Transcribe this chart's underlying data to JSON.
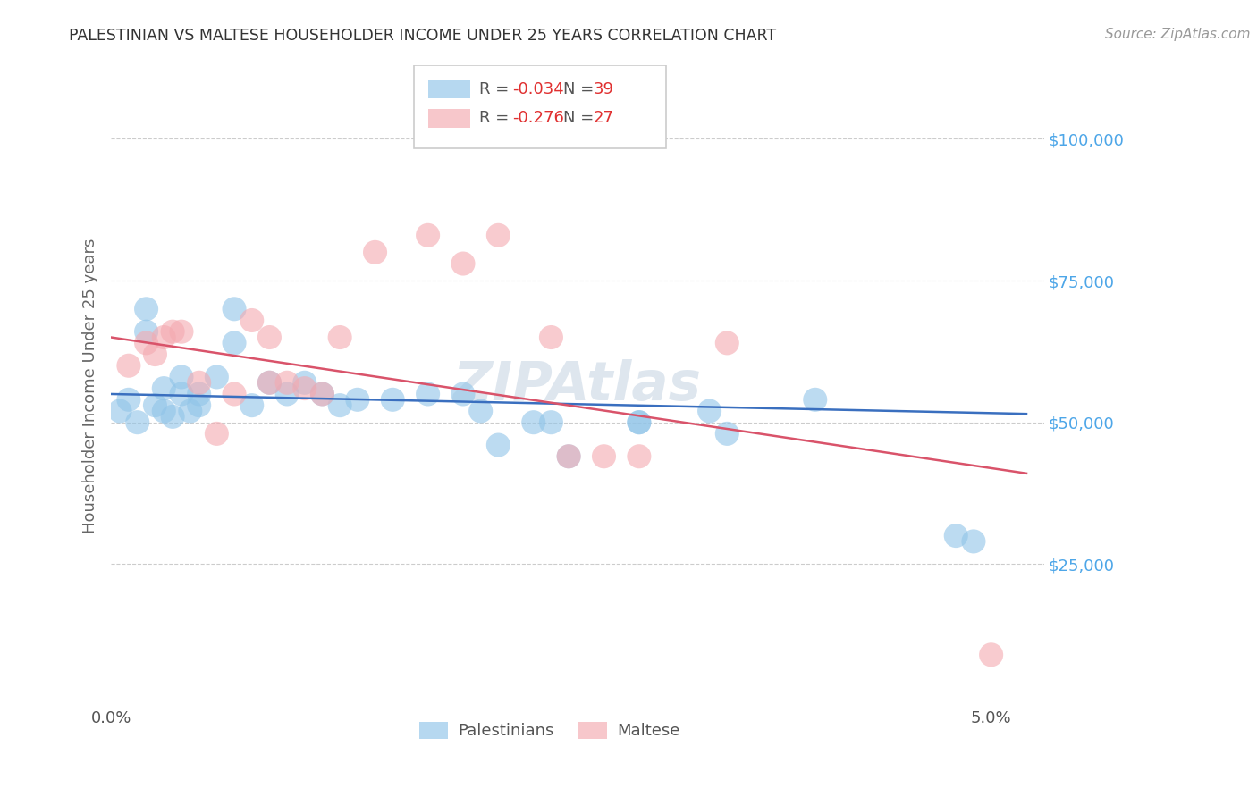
{
  "title": "PALESTINIAN VS MALTESE HOUSEHOLDER INCOME UNDER 25 YEARS CORRELATION CHART",
  "source": "Source: ZipAtlas.com",
  "ylabel": "Householder Income Under 25 years",
  "blue_color": "#90c4e8",
  "pink_color": "#f4a9b0",
  "blue_line_color": "#3a6fbf",
  "pink_line_color": "#d9536a",
  "tick_label_color": "#4da6e8",
  "watermark_color": "#d0dce8",
  "palestinians_x": [
    0.0005,
    0.001,
    0.0015,
    0.002,
    0.002,
    0.0025,
    0.003,
    0.003,
    0.0035,
    0.004,
    0.004,
    0.0045,
    0.005,
    0.005,
    0.006,
    0.007,
    0.007,
    0.008,
    0.009,
    0.01,
    0.011,
    0.012,
    0.013,
    0.014,
    0.016,
    0.018,
    0.02,
    0.021,
    0.022,
    0.024,
    0.025,
    0.026,
    0.03,
    0.03,
    0.034,
    0.035,
    0.04,
    0.048,
    0.049
  ],
  "palestinians_y": [
    52000,
    54000,
    50000,
    66000,
    70000,
    53000,
    52000,
    56000,
    51000,
    55000,
    58000,
    52000,
    55000,
    53000,
    58000,
    64000,
    70000,
    53000,
    57000,
    55000,
    57000,
    55000,
    53000,
    54000,
    54000,
    55000,
    55000,
    52000,
    46000,
    50000,
    50000,
    44000,
    50000,
    50000,
    52000,
    48000,
    54000,
    30000,
    29000
  ],
  "maltese_x": [
    0.001,
    0.002,
    0.0025,
    0.003,
    0.0035,
    0.004,
    0.005,
    0.006,
    0.007,
    0.008,
    0.009,
    0.009,
    0.01,
    0.011,
    0.012,
    0.013,
    0.015,
    0.018,
    0.02,
    0.022,
    0.025,
    0.026,
    0.028,
    0.03,
    0.035,
    0.05
  ],
  "maltese_y": [
    60000,
    64000,
    62000,
    65000,
    66000,
    66000,
    57000,
    48000,
    55000,
    68000,
    57000,
    65000,
    57000,
    56000,
    55000,
    65000,
    80000,
    83000,
    78000,
    83000,
    65000,
    44000,
    44000,
    44000,
    64000,
    9000
  ],
  "blue_trend_x": [
    0.0,
    0.052
  ],
  "blue_trend_y": [
    55000,
    51500
  ],
  "pink_trend_x": [
    0.0,
    0.052
  ],
  "pink_trend_y": [
    65000,
    41000
  ],
  "xlim": [
    0.0,
    0.053
  ],
  "ylim": [
    0,
    113000
  ],
  "yticks": [
    25000,
    50000,
    75000,
    100000
  ],
  "ytick_labels": [
    "$25,000",
    "$50,000",
    "$75,000",
    "$100,000"
  ],
  "xticks": [
    0.0,
    0.01,
    0.02,
    0.03,
    0.04,
    0.05
  ],
  "xtick_labels": [
    "0.0%",
    "",
    "",
    "",
    "",
    "5.0%"
  ]
}
